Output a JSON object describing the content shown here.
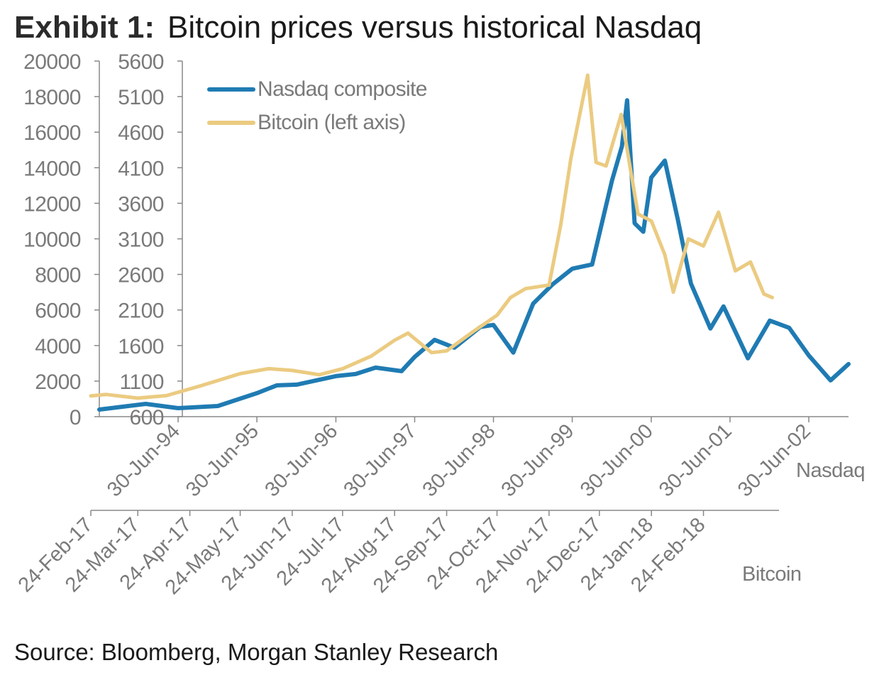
{
  "header": {
    "exhibit_label": "Exhibit 1:",
    "title": "Bitcoin prices versus historical Nasdaq"
  },
  "footer": {
    "source": "Source: Bloomberg, Morgan Stanley Research"
  },
  "colors": {
    "nasdaq": "#1f7bb3",
    "bitcoin": "#ebcb81",
    "axis": "#888888",
    "tick_text": "#7a7a7a"
  },
  "chart_data": {
    "type": "line",
    "title": "Bitcoin prices versus historical Nasdaq",
    "grid": false,
    "legend_position": "top-left",
    "left_axis": {
      "series": "Bitcoin",
      "range": [
        0,
        20000
      ],
      "ticks": [
        "0",
        "2000",
        "4000",
        "6000",
        "8000",
        "10000",
        "12000",
        "14000",
        "16000",
        "18000",
        "20000"
      ]
    },
    "right_inner_axis": {
      "series": "Nasdaq",
      "range": [
        600,
        5600
      ],
      "ticks": [
        "600",
        "1100",
        "1600",
        "2100",
        "2600",
        "3100",
        "3600",
        "4100",
        "4600",
        "5100",
        "5600"
      ]
    },
    "nasdaq_axis": {
      "label": "Nasdaq",
      "range": [
        "1993-06-30",
        "2002-12-31"
      ],
      "ticks": [
        "30-Jun-94",
        "30-Jun-95",
        "30-Jun-96",
        "30-Jun-97",
        "30-Jun-98",
        "30-Jun-99",
        "30-Jun-00",
        "30-Jun-01",
        "30-Jun-02"
      ]
    },
    "bitcoin_axis": {
      "label": "Bitcoin",
      "range": [
        "2017-02-24",
        "2018-04-10"
      ],
      "ticks": [
        "24-Feb-17",
        "24-Mar-17",
        "24-Apr-17",
        "24-May-17",
        "24-Jun-17",
        "24-Jul-17",
        "24-Aug-17",
        "24-Sep-17",
        "24-Oct-17",
        "24-Nov-17",
        "24-Dec-17",
        "24-Jan-18",
        "24-Feb-18"
      ]
    },
    "series": [
      {
        "name": "Nasdaq composite",
        "axis": "right",
        "x": [
          "1993-06-30",
          "1994-01-31",
          "1994-06-30",
          "1994-12-31",
          "1995-06-30",
          "1995-09-30",
          "1995-12-31",
          "1996-06-30",
          "1996-09-30",
          "1996-12-31",
          "1997-04-30",
          "1997-06-30",
          "1997-09-30",
          "1997-12-31",
          "1998-04-30",
          "1998-06-30",
          "1998-09-30",
          "1998-12-31",
          "1999-03-31",
          "1999-06-30",
          "1999-09-30",
          "1999-12-31",
          "2000-02-15",
          "2000-03-10",
          "2000-04-14",
          "2000-05-24",
          "2000-06-30",
          "2000-09-01",
          "2000-10-31",
          "2000-12-31",
          "2001-03-31",
          "2001-05-31",
          "2001-09-21",
          "2001-12-31",
          "2002-03-31",
          "2002-06-30",
          "2002-10-09",
          "2002-12-31"
        ],
        "y": [
          700,
          780,
          720,
          750,
          930,
          1040,
          1050,
          1170,
          1200,
          1290,
          1240,
          1440,
          1680,
          1570,
          1860,
          1890,
          1500,
          2190,
          2460,
          2680,
          2740,
          3920,
          4400,
          5048,
          3320,
          3200,
          3960,
          4200,
          3370,
          2470,
          1840,
          2150,
          1420,
          1950,
          1850,
          1460,
          1110,
          1340
        ]
      },
      {
        "name": "Bitcoin (left axis)",
        "axis": "left",
        "x": [
          "2017-02-24",
          "2017-03-05",
          "2017-03-24",
          "2017-04-10",
          "2017-05-01",
          "2017-05-24",
          "2017-06-10",
          "2017-06-24",
          "2017-07-10",
          "2017-07-24",
          "2017-08-10",
          "2017-08-24",
          "2017-09-01",
          "2017-09-15",
          "2017-09-24",
          "2017-10-10",
          "2017-10-24",
          "2017-11-01",
          "2017-11-10",
          "2017-11-24",
          "2017-12-01",
          "2017-12-07",
          "2017-12-17",
          "2017-12-22",
          "2017-12-28",
          "2018-01-06",
          "2018-01-16",
          "2018-01-24",
          "2018-02-01",
          "2018-02-06",
          "2018-02-15",
          "2018-02-24",
          "2018-03-05",
          "2018-03-15",
          "2018-03-24",
          "2018-04-01",
          "2018-04-06"
        ],
        "y": [
          1170,
          1250,
          1040,
          1180,
          1750,
          2420,
          2700,
          2600,
          2360,
          2700,
          3400,
          4300,
          4700,
          3600,
          3700,
          4800,
          5700,
          6700,
          7200,
          7400,
          10800,
          14500,
          19200,
          14300,
          14100,
          17000,
          11400,
          11000,
          9100,
          7000,
          10000,
          9600,
          11500,
          8200,
          8700,
          6900,
          6700
        ]
      }
    ]
  }
}
